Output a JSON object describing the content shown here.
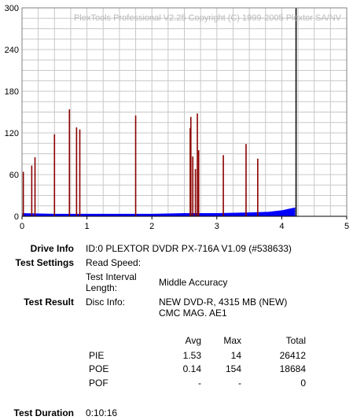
{
  "chart_data": {
    "type": "bar",
    "title": "PlexTools Professional V2.25 Copyright (C) 1999-2005 Plextor SA/NV",
    "xlabel": "",
    "ylabel": "",
    "xlim": [
      0,
      5
    ],
    "ylim": [
      0,
      300
    ],
    "x_ticks": [
      "0",
      "1",
      "2",
      "3",
      "4",
      "5"
    ],
    "y_ticks": [
      "0",
      "60",
      "120",
      "180",
      "240",
      "300"
    ],
    "grid": true,
    "series": [
      {
        "color": "#8b0000",
        "x": [
          0.02,
          0.15,
          0.2,
          0.5,
          0.73,
          0.84,
          0.89,
          1.75,
          2.59,
          2.6,
          2.63,
          2.67,
          2.7,
          2.72,
          3.1,
          3.45,
          3.63
        ],
        "values": [
          64,
          73,
          85,
          118,
          154,
          128,
          125,
          145,
          127,
          143,
          86,
          68,
          148,
          95,
          88,
          104,
          83
        ]
      },
      {
        "color": "#0000ff",
        "x": [
          0.0,
          0.5,
          1.0,
          1.5,
          2.0,
          2.5,
          3.0,
          3.5,
          3.8,
          4.0,
          4.1,
          4.2
        ],
        "values": [
          4,
          3,
          3,
          3,
          3,
          4,
          4,
          5,
          6,
          8,
          10,
          12
        ]
      }
    ],
    "markers": [
      {
        "x": 4.22,
        "color": "#000000"
      }
    ],
    "colors": {
      "grid": "#c8c8c8",
      "plot_bg": "#ffffff",
      "axis": "#000000"
    }
  },
  "info": {
    "drive_info_label": "Drive Info",
    "drive_info_value": "ID:0 PLEXTOR DVDR PX-716A V1.09 (#538633)",
    "test_settings_label": "Test Settings",
    "read_speed_label": "Read Speed:",
    "read_speed_value": "",
    "test_interval_label_1": "Test Interval",
    "test_interval_label_2": "Length:",
    "test_interval_value": "Middle Accuracy",
    "test_result_label": "Test Result",
    "disc_info_label": "Disc Info:",
    "disc_info_value_1": "NEW DVD-R, 4315 MB (NEW)",
    "disc_info_value_2": "CMC MAG. AE1",
    "test_duration_label": "Test Duration",
    "test_duration_value": "0:10:16"
  },
  "results_table": {
    "headers": {
      "avg": "Avg",
      "max": "Max",
      "total": "Total"
    },
    "rows": [
      {
        "name": "PIE",
        "avg": "1.53",
        "max": "14",
        "total": "26412"
      },
      {
        "name": "POE",
        "avg": "0.14",
        "max": "154",
        "total": "18684"
      },
      {
        "name": "POF",
        "avg": "-",
        "max": "-",
        "total": "0"
      }
    ]
  }
}
